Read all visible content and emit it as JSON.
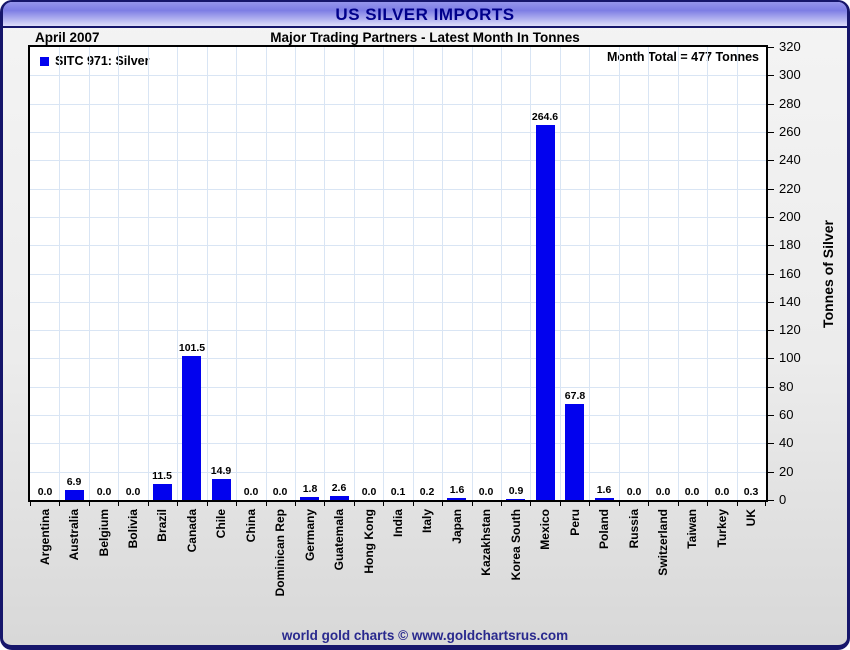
{
  "window": {
    "title": "US SILVER IMPORTS"
  },
  "header": {
    "period": "April 2007",
    "subtitle": "Major Trading Partners - Latest Month In Tonnes",
    "month_total": "Month Total = 477 Tonnes"
  },
  "legend": {
    "label": "SITC 971: Silver"
  },
  "footer": {
    "credit": "world gold charts © www.goldchartsrus.com"
  },
  "colors": {
    "bar": "#0202ee",
    "frame_border": "#16166b",
    "title_text": "#00008b",
    "footer_text": "#29298e",
    "gridline": "#d9e5f4",
    "titlebar_top": "#7d7de4",
    "titlebar_bottom": "#dedefa"
  },
  "chart_data": {
    "type": "bar",
    "title": "US SILVER IMPORTS",
    "subtitle": "Major Trading Partners - Latest Month In Tonnes",
    "period": "April 2007",
    "series_name": "SITC 971: Silver",
    "month_total_tonnes": 477,
    "categories": [
      "Argentina",
      "Australia",
      "Belgium",
      "Bolivia",
      "Brazil",
      "Canada",
      "Chile",
      "China",
      "Dominican Rep",
      "Germany",
      "Guatemala",
      "Hong Kong",
      "India",
      "Italy",
      "Japan",
      "Kazakhstan",
      "Korea South",
      "Mexico",
      "Peru",
      "Poland",
      "Russia",
      "Switzerland",
      "Taiwan",
      "Turkey",
      "UK"
    ],
    "values": [
      0.0,
      6.9,
      0.0,
      0.0,
      11.5,
      101.5,
      14.9,
      0.0,
      0.0,
      1.8,
      2.6,
      0.0,
      0.1,
      0.2,
      1.6,
      0.0,
      0.9,
      264.6,
      67.8,
      1.6,
      0.0,
      0.0,
      0.0,
      0.0,
      0.3
    ],
    "xlabel": "",
    "ylabel": "Tonnes of Silver",
    "ylim": [
      0,
      320
    ],
    "ytick_step": 20,
    "yaxis_side": "right",
    "grid": true,
    "value_labels": true,
    "legend_position": "top-left",
    "bar_color": "#0202ee"
  }
}
